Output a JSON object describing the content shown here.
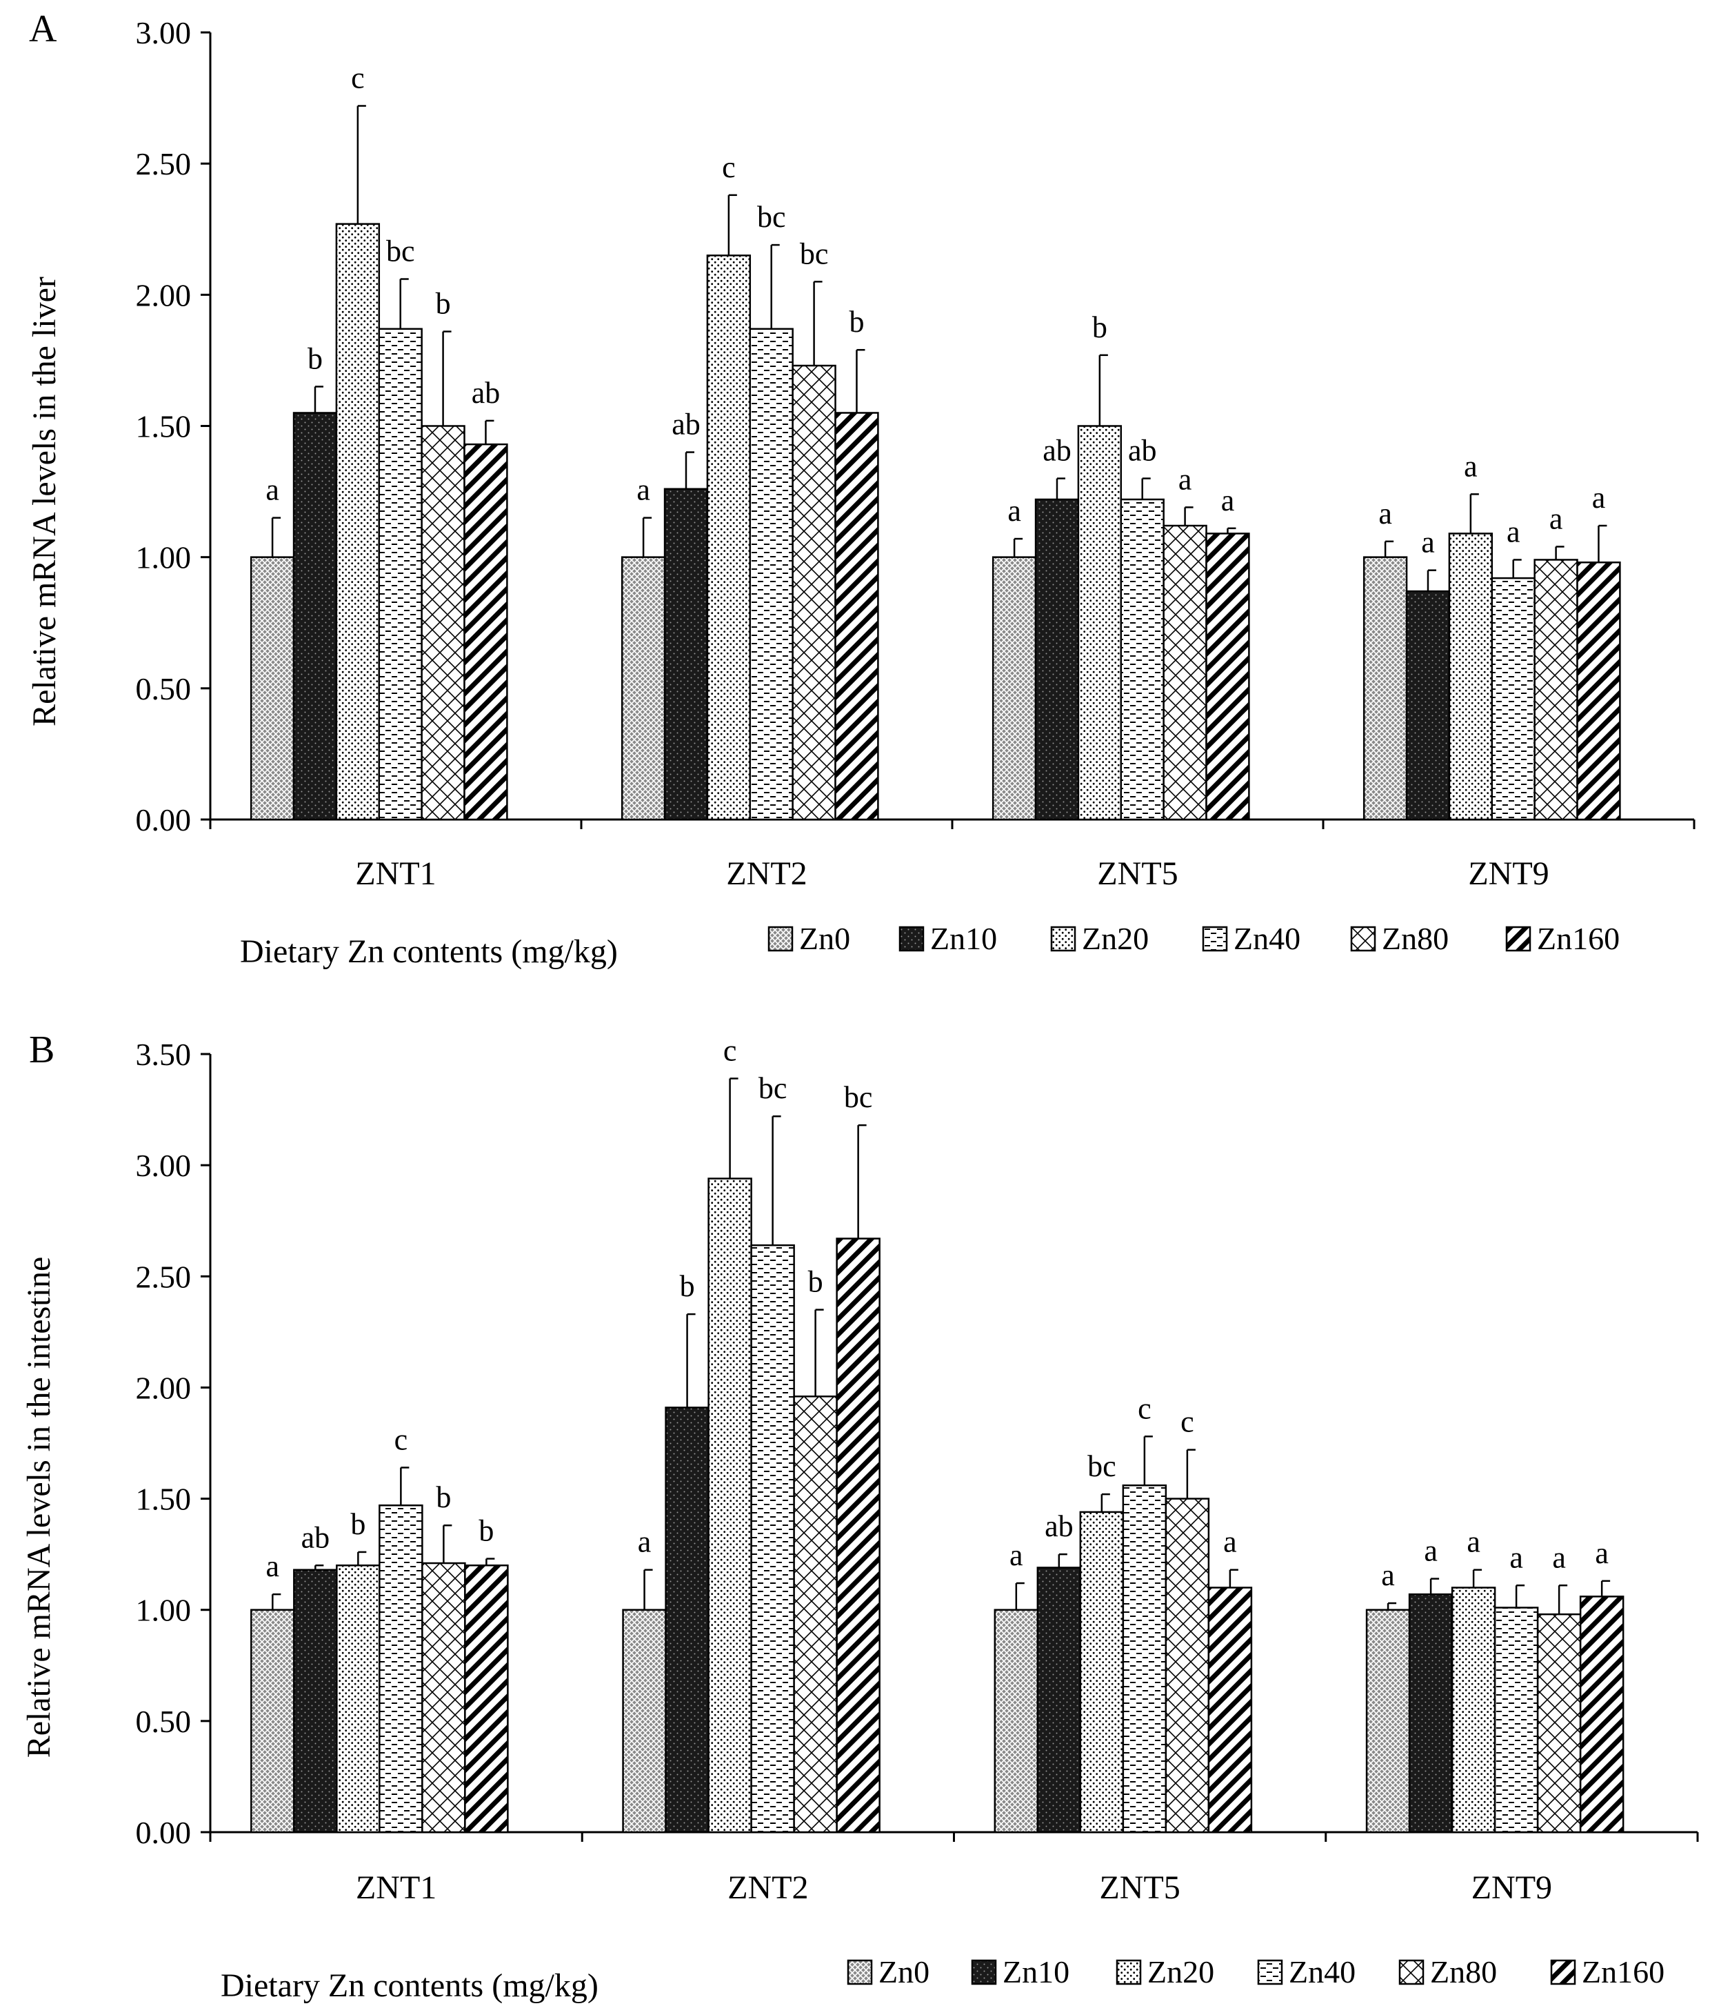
{
  "figure": {
    "xlabel": "Dietary Zn contents (mg/kg)",
    "panels_text": [
      "A",
      "B"
    ]
  },
  "legend": {
    "entries": [
      {
        "name": "Zn0",
        "pattern": "crosshatch"
      },
      {
        "name": "Zn10",
        "pattern": "dense-dark"
      },
      {
        "name": "Zn20",
        "pattern": "dots"
      },
      {
        "name": "Zn40",
        "pattern": "dashes"
      },
      {
        "name": "Zn80",
        "pattern": "diamond"
      },
      {
        "name": "Zn160",
        "pattern": "diagonal"
      }
    ]
  },
  "chart_data": [
    {
      "type": "bar",
      "panel": "A",
      "ylabel": "Relative mRNA  levels in the liver",
      "xlabel": "Dietary Zn contents (mg/kg)",
      "ylim": [
        0,
        3.0
      ],
      "yticks": [
        "0.00",
        "0.50",
        "1.00",
        "1.50",
        "2.00",
        "2.50",
        "3.00"
      ],
      "categories": [
        "ZNT1",
        "ZNT2",
        "ZNT5",
        "ZNT9"
      ],
      "legend": "bottom",
      "grid": false,
      "series": [
        {
          "name": "Zn0",
          "values": [
            1.0,
            1.0,
            1.0,
            1.0
          ],
          "errors": [
            0.15,
            0.15,
            0.07,
            0.06
          ],
          "labels": [
            "a",
            "a",
            "a",
            "a"
          ]
        },
        {
          "name": "Zn10",
          "values": [
            1.55,
            1.26,
            1.22,
            0.87
          ],
          "errors": [
            0.1,
            0.14,
            0.08,
            0.08
          ],
          "labels": [
            "b",
            "ab",
            "ab",
            "a"
          ]
        },
        {
          "name": "Zn20",
          "values": [
            2.27,
            2.15,
            1.5,
            1.09
          ],
          "errors": [
            0.45,
            0.23,
            0.27,
            0.15
          ],
          "labels": [
            "c",
            "c",
            "b",
            "a"
          ]
        },
        {
          "name": "Zn40",
          "values": [
            1.87,
            1.87,
            1.22,
            0.92
          ],
          "errors": [
            0.19,
            0.32,
            0.08,
            0.07
          ],
          "labels": [
            "bc",
            "bc",
            "ab",
            "a"
          ]
        },
        {
          "name": "Zn80",
          "values": [
            1.5,
            1.73,
            1.12,
            0.99
          ],
          "errors": [
            0.36,
            0.32,
            0.07,
            0.05
          ],
          "labels": [
            "b",
            "bc",
            "a",
            "a"
          ]
        },
        {
          "name": "Zn160",
          "values": [
            1.43,
            1.55,
            1.09,
            0.98
          ],
          "errors": [
            0.09,
            0.24,
            0.02,
            0.14
          ],
          "labels": [
            "ab",
            "b",
            "a",
            "a"
          ]
        }
      ]
    },
    {
      "type": "bar",
      "panel": "B",
      "ylabel": "Relative mRNA  levels in the intestine",
      "xlabel": "Dietary Zn contents (mg/kg)",
      "ylim": [
        0,
        3.5
      ],
      "yticks": [
        "0.00",
        "0.50",
        "1.00",
        "1.50",
        "2.00",
        "2.50",
        "3.00",
        "3.50"
      ],
      "categories": [
        "ZNT1",
        "ZNT2",
        "ZNT5",
        "ZNT9"
      ],
      "legend": "bottom",
      "grid": false,
      "series": [
        {
          "name": "Zn0",
          "values": [
            1.0,
            1.0,
            1.0,
            1.0
          ],
          "errors": [
            0.07,
            0.18,
            0.12,
            0.03
          ],
          "labels": [
            "a",
            "a",
            "a",
            "a"
          ]
        },
        {
          "name": "Zn10",
          "values": [
            1.18,
            1.91,
            1.19,
            1.07
          ],
          "errors": [
            0.02,
            0.42,
            0.06,
            0.07
          ],
          "labels": [
            "ab",
            "b",
            "ab",
            "a"
          ]
        },
        {
          "name": "Zn20",
          "values": [
            1.2,
            2.94,
            1.44,
            1.1
          ],
          "errors": [
            0.06,
            0.45,
            0.08,
            0.08
          ],
          "labels": [
            "b",
            "c",
            "bc",
            "a"
          ]
        },
        {
          "name": "Zn40",
          "values": [
            1.47,
            2.64,
            1.56,
            1.01
          ],
          "errors": [
            0.17,
            0.58,
            0.22,
            0.1
          ],
          "labels": [
            "c",
            "bc",
            "c",
            "a"
          ]
        },
        {
          "name": "Zn80",
          "values": [
            1.21,
            1.96,
            1.5,
            0.98
          ],
          "errors": [
            0.17,
            0.39,
            0.22,
            0.13
          ],
          "labels": [
            "b",
            "b",
            "c",
            "a"
          ]
        },
        {
          "name": "Zn160",
          "values": [
            1.2,
            2.67,
            1.1,
            1.06
          ],
          "errors": [
            0.03,
            0.51,
            0.08,
            0.07
          ],
          "labels": [
            "b",
            "bc",
            "a",
            "a"
          ]
        }
      ]
    }
  ]
}
